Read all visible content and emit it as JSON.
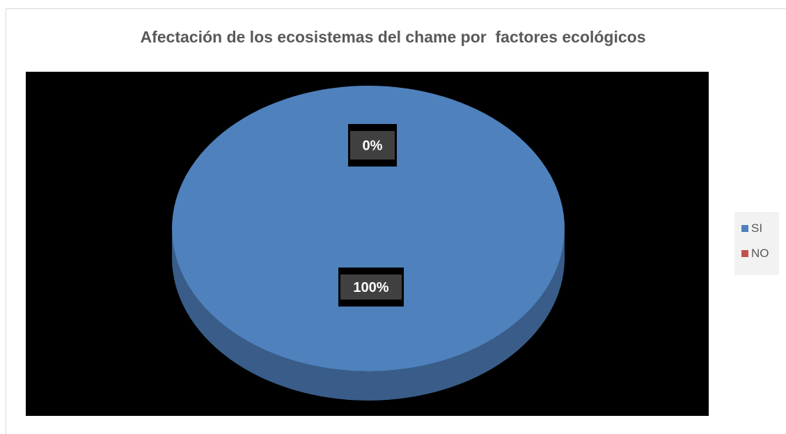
{
  "chart_data": {
    "type": "pie",
    "title": "Afectación de los ecosistemas del chame por  factores ecológicos",
    "categories": [
      "SI",
      "NO"
    ],
    "values": [
      100,
      0
    ],
    "data_labels": [
      "100%",
      "0%"
    ],
    "colors": [
      "#4f81bd",
      "#c0504d"
    ],
    "legend_position": "right",
    "style": "3d",
    "plot_background": "#000000"
  }
}
